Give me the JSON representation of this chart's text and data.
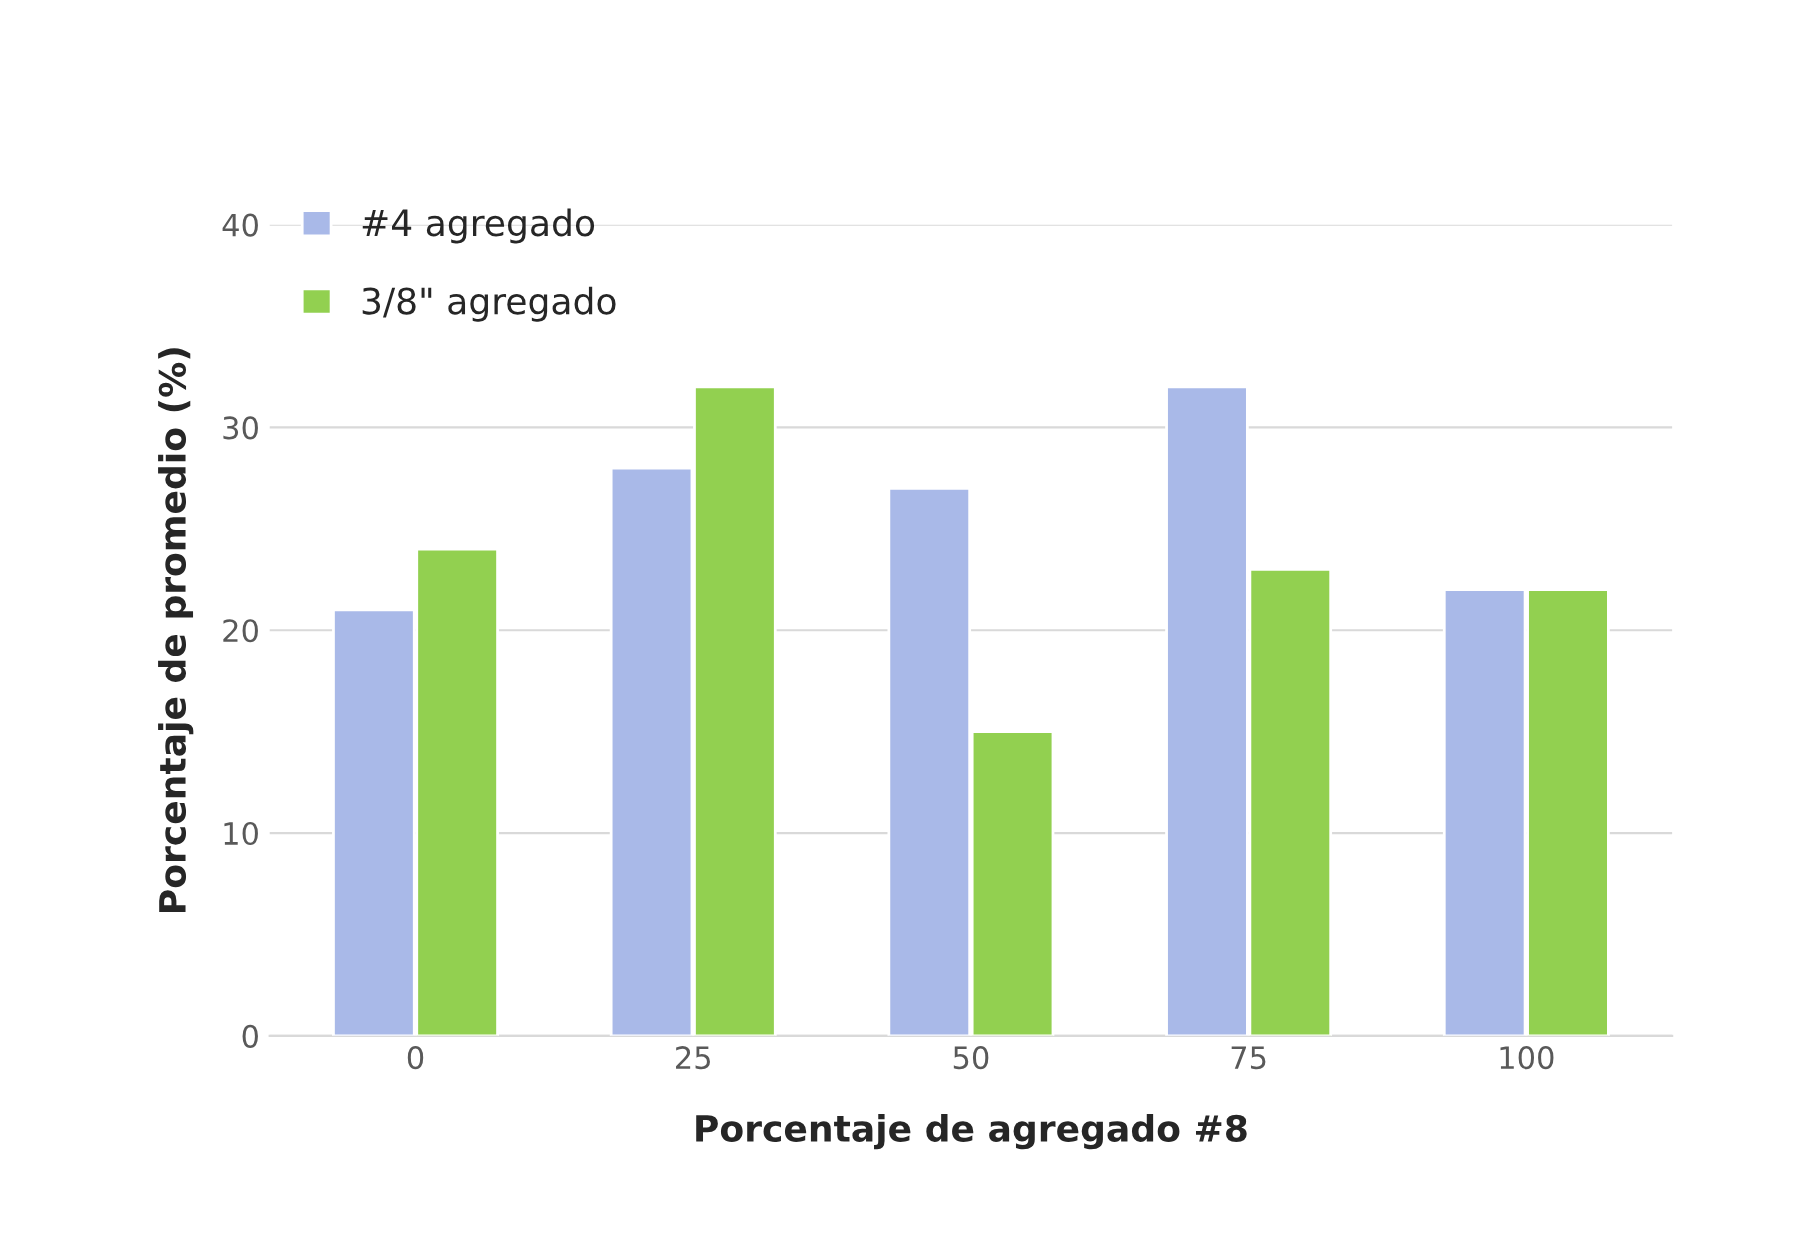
{
  "chart_data": {
    "type": "bar",
    "xlabel": "Porcentaje de agregado #8",
    "ylabel": "Porcentaje de promedio (%)",
    "categories": [
      "0",
      "25",
      "50",
      "75",
      "100"
    ],
    "series": [
      {
        "name": "#4 agregado",
        "color": "#a9b9e8",
        "values": [
          21,
          28,
          27,
          32,
          22
        ]
      },
      {
        "name": "3/8\" agregado",
        "color": "#92d050",
        "values": [
          24,
          32,
          15,
          23,
          22
        ]
      }
    ],
    "ylim": [
      0,
      40
    ],
    "yticks": [
      0,
      10,
      20,
      30,
      40
    ],
    "grid": "y",
    "legend": "top left"
  }
}
